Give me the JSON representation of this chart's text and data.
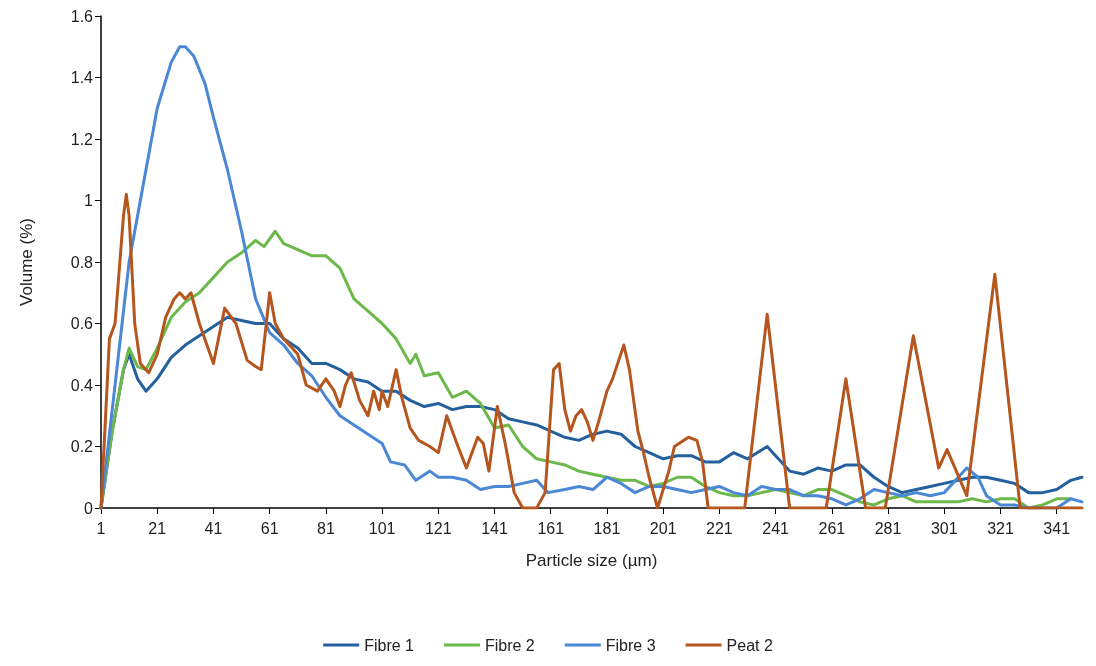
{
  "chart_data": {
    "type": "line",
    "xlabel": "Particle size (µm)",
    "ylabel": "Volume (%)",
    "xlim": [
      1,
      350
    ],
    "xticks": [
      1,
      21,
      41,
      61,
      81,
      101,
      121,
      141,
      161,
      181,
      201,
      221,
      241,
      261,
      281,
      301,
      321,
      341
    ],
    "ylim": [
      0,
      1.6
    ],
    "yticks": [
      0,
      0.2,
      0.4,
      0.6,
      0.8,
      1,
      1.2,
      1.4,
      1.6
    ],
    "grid": false,
    "legend": "bottom",
    "marker": "none",
    "line_style": "solid",
    "series": [
      {
        "name": "Fibre 1",
        "color": "#24609e",
        "x": [
          1,
          5,
          9,
          11,
          14,
          17,
          21,
          26,
          31,
          36,
          41,
          46,
          51,
          56,
          61,
          66,
          71,
          76,
          81,
          86,
          91,
          96,
          101,
          106,
          111,
          116,
          121,
          126,
          131,
          136,
          141,
          146,
          151,
          156,
          161,
          166,
          171,
          176,
          181,
          186,
          191,
          196,
          201,
          206,
          211,
          216,
          221,
          226,
          231,
          238,
          241,
          246,
          251,
          256,
          261,
          266,
          271,
          276,
          281,
          286,
          291,
          296,
          301,
          306,
          311,
          316,
          321,
          326,
          331,
          336,
          341,
          346,
          350
        ],
        "values": [
          0,
          0.25,
          0.45,
          0.5,
          0.42,
          0.38,
          0.42,
          0.49,
          0.53,
          0.56,
          0.59,
          0.62,
          0.61,
          0.6,
          0.6,
          0.55,
          0.52,
          0.47,
          0.47,
          0.45,
          0.42,
          0.41,
          0.38,
          0.38,
          0.35,
          0.33,
          0.34,
          0.32,
          0.33,
          0.33,
          0.32,
          0.29,
          0.28,
          0.27,
          0.25,
          0.23,
          0.22,
          0.24,
          0.25,
          0.24,
          0.2,
          0.18,
          0.16,
          0.17,
          0.17,
          0.15,
          0.15,
          0.18,
          0.16,
          0.2,
          0.17,
          0.12,
          0.11,
          0.13,
          0.12,
          0.14,
          0.14,
          0.1,
          0.07,
          0.05,
          0.06,
          0.07,
          0.08,
          0.09,
          0.1,
          0.1,
          0.09,
          0.08,
          0.05,
          0.05,
          0.06,
          0.09,
          0.1
        ]
      },
      {
        "name": "Fibre 2",
        "color": "#6cb84a",
        "x": [
          1,
          5,
          9,
          11,
          14,
          17,
          21,
          26,
          31,
          36,
          41,
          46,
          51,
          56,
          59,
          63,
          66,
          71,
          76,
          81,
          86,
          91,
          96,
          101,
          106,
          111,
          113,
          116,
          121,
          126,
          131,
          136,
          141,
          146,
          151,
          156,
          161,
          166,
          171,
          176,
          181,
          186,
          191,
          196,
          201,
          206,
          211,
          216,
          221,
          226,
          231,
          236,
          241,
          246,
          251,
          256,
          261,
          266,
          271,
          276,
          281,
          286,
          291,
          296,
          301,
          306,
          311,
          316,
          321,
          326,
          331,
          336,
          341,
          346
        ],
        "values": [
          0,
          0.25,
          0.45,
          0.52,
          0.46,
          0.45,
          0.52,
          0.62,
          0.67,
          0.7,
          0.75,
          0.8,
          0.83,
          0.87,
          0.85,
          0.9,
          0.86,
          0.84,
          0.82,
          0.82,
          0.78,
          0.68,
          0.64,
          0.6,
          0.55,
          0.47,
          0.5,
          0.43,
          0.44,
          0.36,
          0.38,
          0.34,
          0.26,
          0.27,
          0.2,
          0.16,
          0.15,
          0.14,
          0.12,
          0.11,
          0.1,
          0.09,
          0.09,
          0.07,
          0.08,
          0.1,
          0.1,
          0.07,
          0.05,
          0.04,
          0.04,
          0.05,
          0.06,
          0.05,
          0.04,
          0.06,
          0.06,
          0.04,
          0.02,
          0.01,
          0.03,
          0.04,
          0.02,
          0.02,
          0.02,
          0.02,
          0.03,
          0.02,
          0.03,
          0.03,
          0,
          0.01,
          0.03,
          0.03
        ]
      },
      {
        "name": "Fibre 3",
        "color": "#4a88d6",
        "x": [
          1,
          6,
          11,
          16,
          21,
          26,
          29,
          31,
          34,
          38,
          41,
          46,
          51,
          56,
          61,
          66,
          71,
          76,
          81,
          86,
          91,
          96,
          101,
          104,
          109,
          113,
          118,
          121,
          126,
          131,
          136,
          141,
          146,
          151,
          156,
          160,
          166,
          171,
          176,
          181,
          186,
          191,
          196,
          201,
          206,
          211,
          216,
          221,
          226,
          231,
          236,
          241,
          246,
          251,
          256,
          261,
          266,
          271,
          276,
          281,
          286,
          291,
          296,
          301,
          306,
          309,
          313,
          316,
          321,
          326,
          331,
          336,
          341,
          346,
          350
        ],
        "values": [
          0,
          0.4,
          0.8,
          1.05,
          1.3,
          1.45,
          1.5,
          1.5,
          1.47,
          1.38,
          1.27,
          1.1,
          0.9,
          0.68,
          0.57,
          0.53,
          0.47,
          0.43,
          0.36,
          0.3,
          0.27,
          0.24,
          0.21,
          0.15,
          0.14,
          0.09,
          0.12,
          0.1,
          0.1,
          0.09,
          0.06,
          0.07,
          0.07,
          0.08,
          0.09,
          0.05,
          0.06,
          0.07,
          0.06,
          0.1,
          0.08,
          0.05,
          0.07,
          0.07,
          0.06,
          0.05,
          0.06,
          0.07,
          0.05,
          0.04,
          0.07,
          0.06,
          0.06,
          0.04,
          0.04,
          0.03,
          0.01,
          0.03,
          0.06,
          0.05,
          0.04,
          0.05,
          0.04,
          0.05,
          0.1,
          0.13,
          0.1,
          0.04,
          0.01,
          0.01,
          0,
          0,
          0,
          0.03,
          0.02
        ]
      },
      {
        "name": "Peat 2",
        "color": "#b5561f",
        "x": [
          1,
          4,
          6,
          9,
          10,
          11,
          13,
          15,
          18,
          21,
          24,
          27,
          29,
          31,
          33,
          36,
          41,
          45,
          49,
          53,
          56,
          58,
          61,
          63,
          66,
          69,
          71,
          74,
          78,
          81,
          84,
          86,
          88,
          90,
          93,
          96,
          98,
          100,
          101,
          103,
          106,
          108,
          111,
          114,
          118,
          121,
          124,
          128,
          131,
          135,
          137,
          139,
          142,
          145,
          148,
          151,
          156,
          159,
          162,
          164,
          166,
          168,
          170,
          172,
          174,
          176,
          178,
          181,
          183,
          187,
          189,
          192,
          194,
          196,
          199,
          203,
          205,
          210,
          213,
          215,
          217,
          230,
          238,
          246,
          259,
          266,
          273,
          280,
          290,
          299,
          302,
          309,
          319,
          328,
          350
        ],
        "values": [
          0,
          0.55,
          0.6,
          0.95,
          1.02,
          0.95,
          0.6,
          0.47,
          0.44,
          0.5,
          0.62,
          0.68,
          0.7,
          0.68,
          0.7,
          0.6,
          0.47,
          0.65,
          0.6,
          0.48,
          0.46,
          0.45,
          0.7,
          0.6,
          0.55,
          0.52,
          0.5,
          0.4,
          0.38,
          0.42,
          0.38,
          0.33,
          0.4,
          0.44,
          0.35,
          0.3,
          0.38,
          0.32,
          0.38,
          0.33,
          0.45,
          0.36,
          0.26,
          0.22,
          0.2,
          0.18,
          0.3,
          0.2,
          0.13,
          0.23,
          0.21,
          0.12,
          0.33,
          0.2,
          0.05,
          0,
          0,
          0.05,
          0.45,
          0.47,
          0.32,
          0.25,
          0.3,
          0.32,
          0.28,
          0.22,
          0.28,
          0.38,
          0.42,
          0.53,
          0.45,
          0.25,
          0.18,
          0.1,
          0,
          0.12,
          0.2,
          0.23,
          0.22,
          0.15,
          0,
          0,
          0.63,
          0,
          0,
          0.42,
          0,
          0,
          0.56,
          0.13,
          0.19,
          0.04,
          0.76,
          0,
          0
        ]
      }
    ]
  }
}
